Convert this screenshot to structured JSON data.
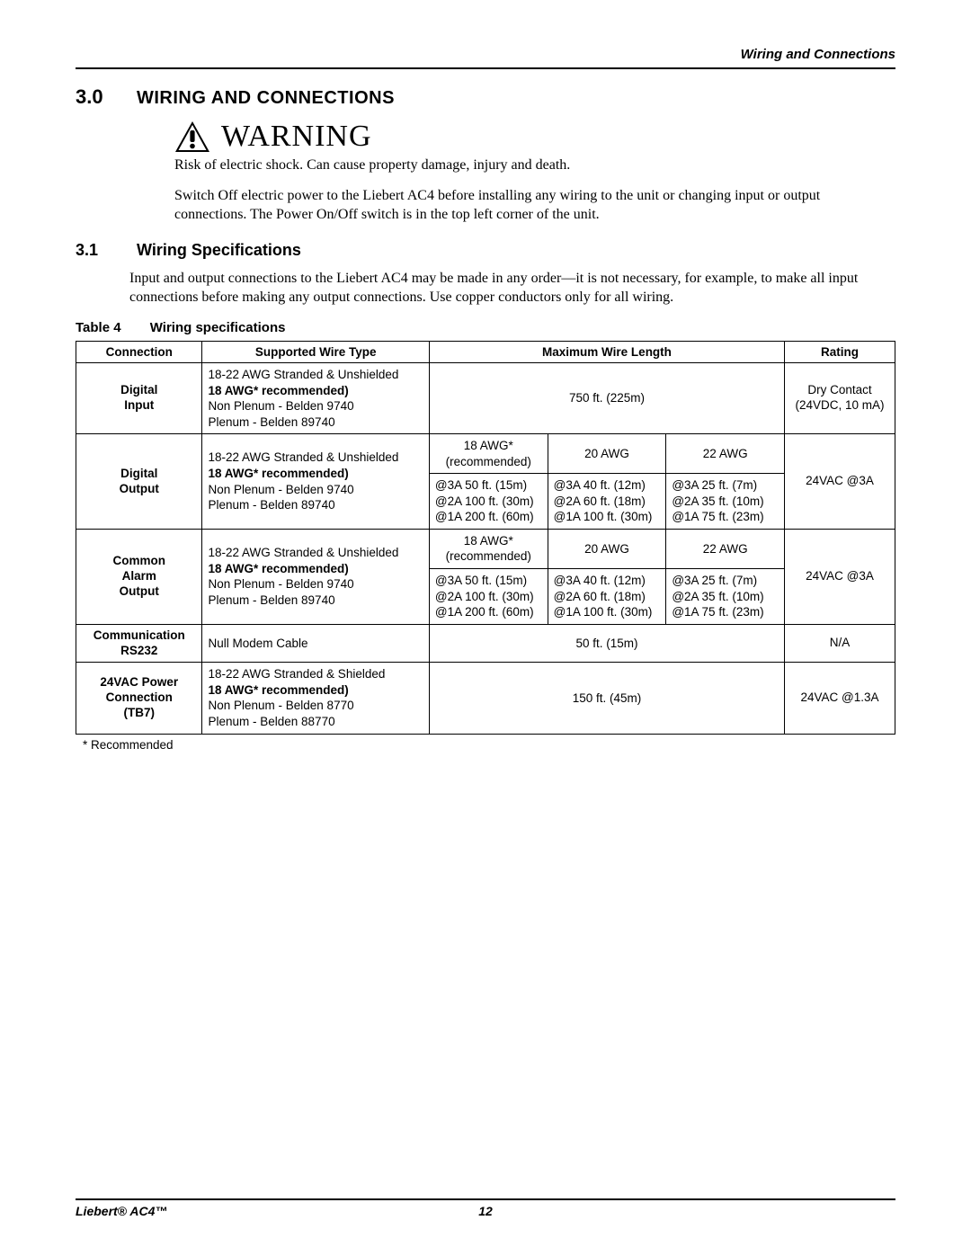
{
  "running_head": "Wiring and Connections",
  "section": {
    "num": "3.0",
    "title": "WIRING AND CONNECTIONS"
  },
  "warning": {
    "word": "WARNING",
    "p1": "Risk of electric shock. Can cause property damage, injury and death.",
    "p2": "Switch Off electric power to the Liebert AC4 before installing any wiring to the unit or changing input or output connections. The Power On/Off switch is in the top left corner of the unit."
  },
  "subsection": {
    "num": "3.1",
    "title": "Wiring Specifications"
  },
  "intro": "Input and output connections to the Liebert AC4 may be made in any order—it is not necessary, for example, to make all input connections before making any output connections. Use copper conductors only for all wiring.",
  "table_caption": {
    "num": "Table 4",
    "title": "Wiring specifications"
  },
  "columns": {
    "connection": "Connection",
    "wire_type": "Supported Wire Type",
    "max_len": "Maximum Wire Length",
    "rating": "Rating"
  },
  "rows": {
    "r1": {
      "conn": "Digital<br>Input",
      "wire": "18-22 AWG Stranded & Unshielded<br><span class=\"b\">18 AWG* recommended)</span><br>Non Plenum - Belden 9740<br>Plenum - Belden 89740",
      "len": "750 ft. (225m)",
      "rating": "Dry Contact<br>(24VDC, 10 mA)"
    },
    "r2": {
      "conn": "Digital<br>Output",
      "wire": "18-22 AWG Stranded & Unshielded<br><span class=\"b\">18 AWG* recommended)</span><br>Non Plenum - Belden 9740<br>Plenum - Belden 89740",
      "h18": "18 AWG*<br>(recommended)",
      "h20": "20 AWG",
      "h22": "22 AWG",
      "c18": "@3A 50 ft. (15m)<br>@2A 100 ft. (30m)<br>@1A 200 ft. (60m)",
      "c20": "@3A 40 ft. (12m)<br>@2A 60 ft. (18m)<br>@1A 100 ft. (30m)",
      "c22": "@3A 25 ft. (7m)<br>@2A 35 ft. (10m)<br>@1A 75 ft. (23m)",
      "rating": "24VAC @3A"
    },
    "r3": {
      "conn": "Common<br>Alarm<br>Output",
      "wire": "18-22 AWG Stranded & Unshielded<br><span class=\"b\">18 AWG* recommended)</span><br>Non Plenum - Belden 9740<br>Plenum - Belden 89740",
      "h18": "18 AWG*<br>(recommended)",
      "h20": "20 AWG",
      "h22": "22 AWG",
      "c18": "@3A 50 ft. (15m)<br>@2A 100 ft. (30m)<br>@1A 200 ft. (60m)",
      "c20": "@3A 40 ft. (12m)<br>@2A 60 ft. (18m)<br>@1A 100 ft. (30m)",
      "c22": "@3A 25 ft. (7m)<br>@2A 35 ft. (10m)<br>@1A 75 ft. (23m)",
      "rating": "24VAC @3A"
    },
    "r4": {
      "conn": "Communication<br>RS232",
      "wire": "Null Modem Cable",
      "len": "50 ft. (15m)",
      "rating": "N/A"
    },
    "r5": {
      "conn": "24VAC Power<br>Connection<br>(TB7)",
      "wire": "18-22 AWG Stranded & Shielded<br><span class=\"b\">18 AWG* recommended)</span><br>Non Plenum - Belden 8770<br>Plenum - Belden 88770",
      "len": "150 ft. (45m)",
      "rating": "24VAC @1.3A"
    }
  },
  "footnote": "* Recommended",
  "footer": {
    "product": "Liebert® AC4™",
    "page": "12"
  }
}
